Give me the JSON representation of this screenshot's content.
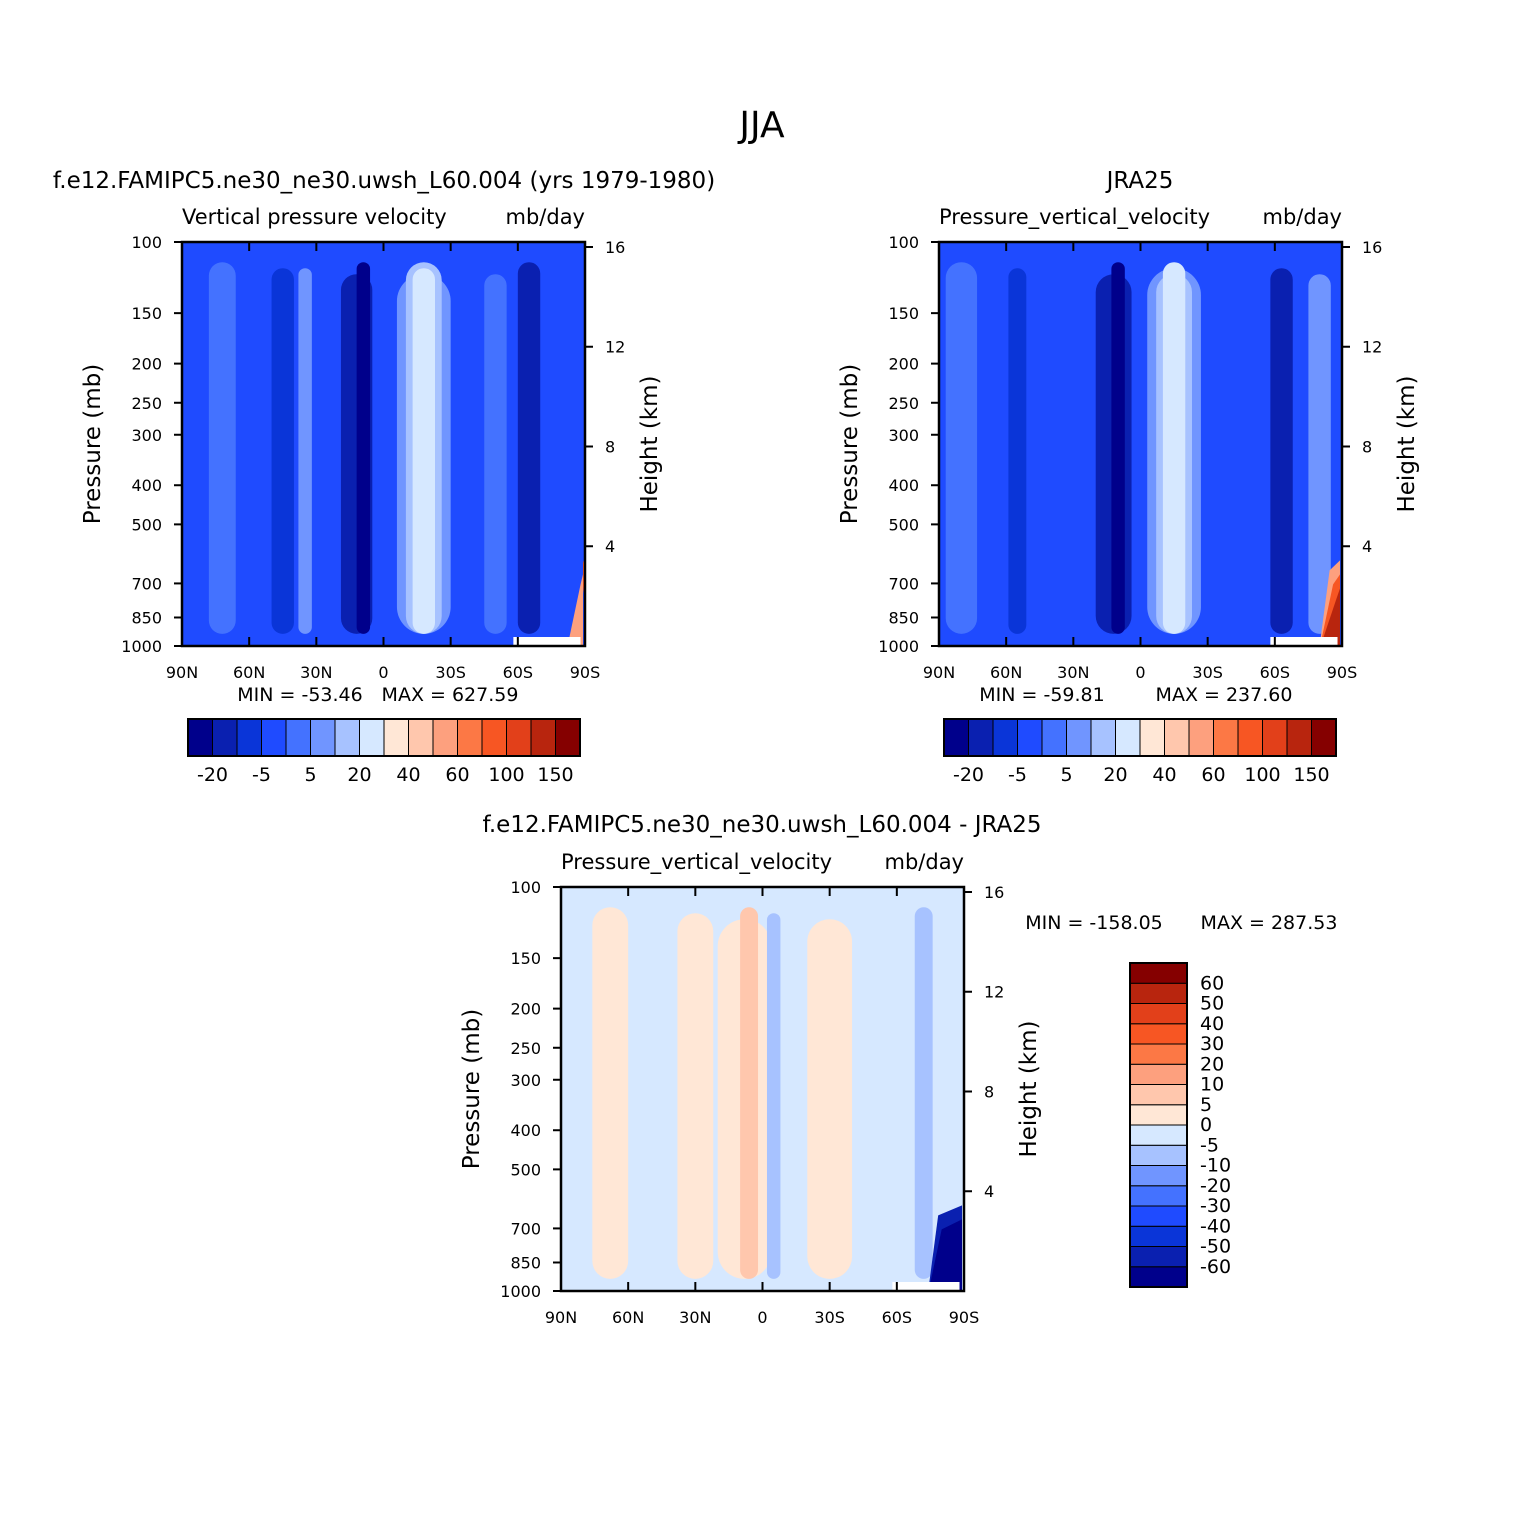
{
  "suptitle": "JJA",
  "chart_data": [
    {
      "type": "heatmap",
      "plot_title": "f.e12.FAMIPC5.ne30_ne30.uwsh_L60.004 (yrs 1979-1980)",
      "variable": "Vertical pressure velocity",
      "units": "mb/day",
      "xlabel": "",
      "ylabel": "Pressure (mb)",
      "ylabel_right": "Height (km)",
      "x_ticks": [
        "90N",
        "60N",
        "30N",
        "0",
        "30S",
        "60S",
        "90S"
      ],
      "y_ticks": [
        100,
        150,
        200,
        250,
        300,
        400,
        500,
        700,
        850,
        1000
      ],
      "y_ticks_right": [
        16,
        12,
        8,
        4
      ],
      "ylim": [
        1000,
        100
      ],
      "min_label": "MIN = -53.46",
      "max_label": "MAX = 627.59",
      "stats": {
        "min": -53.46,
        "max": 627.59
      },
      "colorbar": {
        "orientation": "horizontal",
        "colors": [
          "#00008b",
          "#0a20b0",
          "#0a35d8",
          "#1f4bff",
          "#4472ff",
          "#7095ff",
          "#a7c2ff",
          "#d6e8ff",
          "#ffe7d6",
          "#ffc7ad",
          "#fda07e",
          "#fc7845",
          "#f75623",
          "#e2401a",
          "#b8250e",
          "#850000"
        ],
        "tick_labels": [
          "-20",
          "-5",
          "5",
          "20",
          "40",
          "60",
          "100",
          "150"
        ]
      }
    },
    {
      "type": "heatmap",
      "plot_title": "JRA25",
      "variable": "Pressure_vertical_velocity",
      "units": "mb/day",
      "xlabel": "",
      "ylabel": "Pressure (mb)",
      "ylabel_right": "Height (km)",
      "x_ticks": [
        "90N",
        "60N",
        "30N",
        "0",
        "30S",
        "60S",
        "90S"
      ],
      "y_ticks": [
        100,
        150,
        200,
        250,
        300,
        400,
        500,
        700,
        850,
        1000
      ],
      "y_ticks_right": [
        16,
        12,
        8,
        4
      ],
      "ylim": [
        1000,
        100
      ],
      "min_label": "MIN = -59.81",
      "max_label": "MAX = 237.60",
      "stats": {
        "min": -59.81,
        "max": 237.6
      },
      "colorbar": {
        "orientation": "horizontal",
        "colors": [
          "#00008b",
          "#0a20b0",
          "#0a35d8",
          "#1f4bff",
          "#4472ff",
          "#7095ff",
          "#a7c2ff",
          "#d6e8ff",
          "#ffe7d6",
          "#ffc7ad",
          "#fda07e",
          "#fc7845",
          "#f75623",
          "#e2401a",
          "#b8250e",
          "#850000"
        ],
        "tick_labels": [
          "-20",
          "-5",
          "5",
          "20",
          "40",
          "60",
          "100",
          "150"
        ]
      }
    },
    {
      "type": "heatmap",
      "plot_title": "f.e12.FAMIPC5.ne30_ne30.uwsh_L60.004 - JRA25",
      "variable": "Pressure_vertical_velocity",
      "units": "mb/day",
      "xlabel": "",
      "ylabel": "Pressure (mb)",
      "ylabel_right": "Height (km)",
      "x_ticks": [
        "90N",
        "60N",
        "30N",
        "0",
        "30S",
        "60S",
        "90S"
      ],
      "y_ticks": [
        100,
        150,
        200,
        250,
        300,
        400,
        500,
        700,
        850,
        1000
      ],
      "y_ticks_right": [
        16,
        12,
        8,
        4
      ],
      "ylim": [
        1000,
        100
      ],
      "min_label": "MIN = -158.05",
      "max_label": "MAX = 287.53",
      "stats": {
        "min": -158.05,
        "max": 287.53
      },
      "colorbar": {
        "orientation": "vertical",
        "colors": [
          "#00008b",
          "#0a20b0",
          "#0a35d8",
          "#1f4bff",
          "#4472ff",
          "#7095ff",
          "#a7c2ff",
          "#d6e8ff",
          "#ffe7d6",
          "#ffc7ad",
          "#fda07e",
          "#fc7845",
          "#f75623",
          "#e2401a",
          "#b8250e",
          "#850000"
        ],
        "tick_labels": [
          "-60",
          "-50",
          "-40",
          "-30",
          "-20",
          "-10",
          "-5",
          "0",
          "5",
          "10",
          "20",
          "30",
          "40",
          "50",
          "60"
        ]
      }
    }
  ]
}
